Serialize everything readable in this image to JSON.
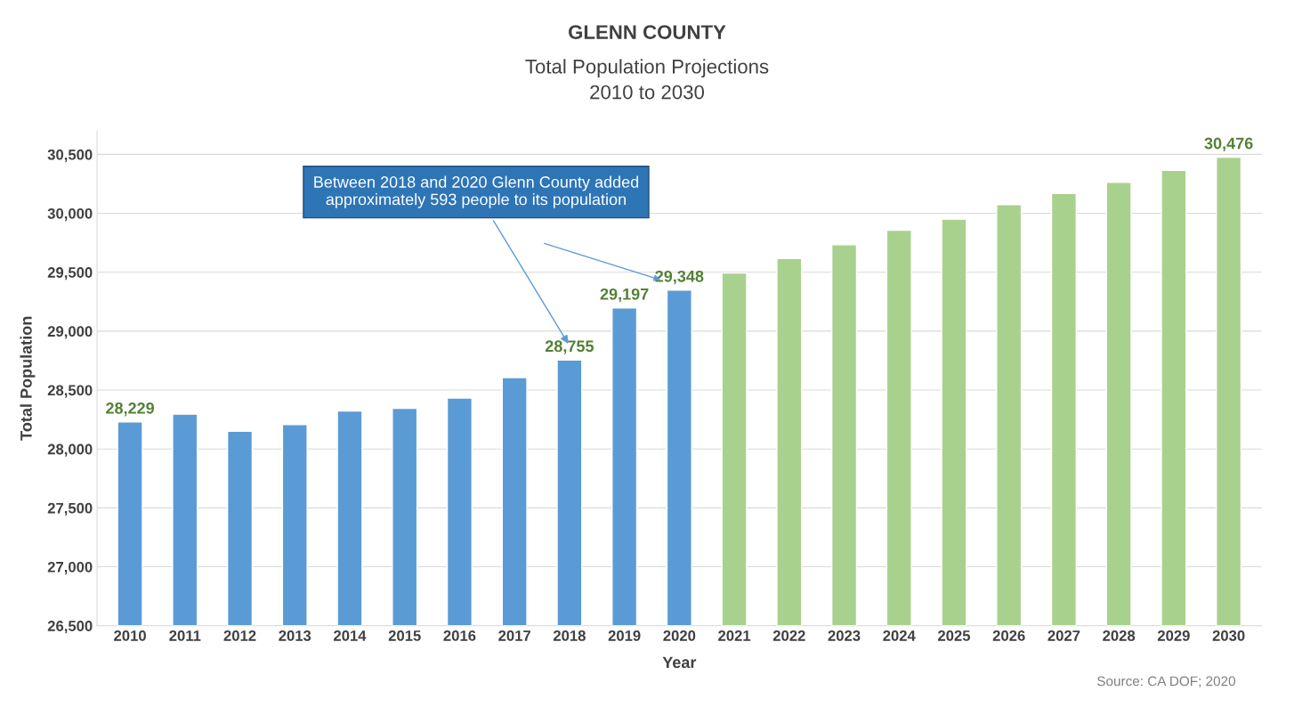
{
  "chart_data": {
    "type": "bar",
    "title": "GLENN COUNTY",
    "subtitle": "Total Population Projections\n2010 to 2030",
    "xlabel": "Year",
    "ylabel": "Total Population",
    "categories": [
      "2010",
      "2011",
      "2012",
      "2013",
      "2014",
      "2015",
      "2016",
      "2017",
      "2018",
      "2019",
      "2020",
      "2021",
      "2022",
      "2023",
      "2024",
      "2025",
      "2026",
      "2027",
      "2028",
      "2029",
      "2030"
    ],
    "values": [
      28229,
      28295,
      28150,
      28207,
      28323,
      28345,
      28432,
      28606,
      28755,
      29197,
      29348,
      29493,
      29617,
      29733,
      29856,
      29950,
      30074,
      30168,
      30262,
      30364,
      30476
    ],
    "colors": [
      "#5b9bd5",
      "#5b9bd5",
      "#5b9bd5",
      "#5b9bd5",
      "#5b9bd5",
      "#5b9bd5",
      "#5b9bd5",
      "#5b9bd5",
      "#5b9bd5",
      "#5b9bd5",
      "#5b9bd5",
      "#a9d18e",
      "#a9d18e",
      "#a9d18e",
      "#a9d18e",
      "#a9d18e",
      "#a9d18e",
      "#a9d18e",
      "#a9d18e",
      "#a9d18e",
      "#a9d18e"
    ],
    "value_labels": [
      "28,229",
      null,
      null,
      null,
      null,
      null,
      null,
      null,
      "28,755",
      "29,197",
      "29,348",
      null,
      null,
      null,
      null,
      null,
      null,
      null,
      null,
      null,
      "30,476"
    ],
    "ylim": [
      26500,
      30700
    ],
    "yticks": [
      {
        "value": 26500,
        "label": "26,500"
      },
      {
        "value": 27000,
        "label": "27,000"
      },
      {
        "value": 27500,
        "label": "27,500"
      },
      {
        "value": 28000,
        "label": "28,000"
      },
      {
        "value": 28500,
        "label": "28,500"
      },
      {
        "value": 29000,
        "label": "29,000"
      },
      {
        "value": 29500,
        "label": "29,500"
      },
      {
        "value": 30000,
        "label": "30,000"
      },
      {
        "value": 30500,
        "label": "30,500"
      }
    ],
    "grid": "y",
    "annotations": [
      "Between 2018 and 2020 Glenn County added approximately 593 people to its population",
      "Source: CA DOF; 2020"
    ]
  }
}
